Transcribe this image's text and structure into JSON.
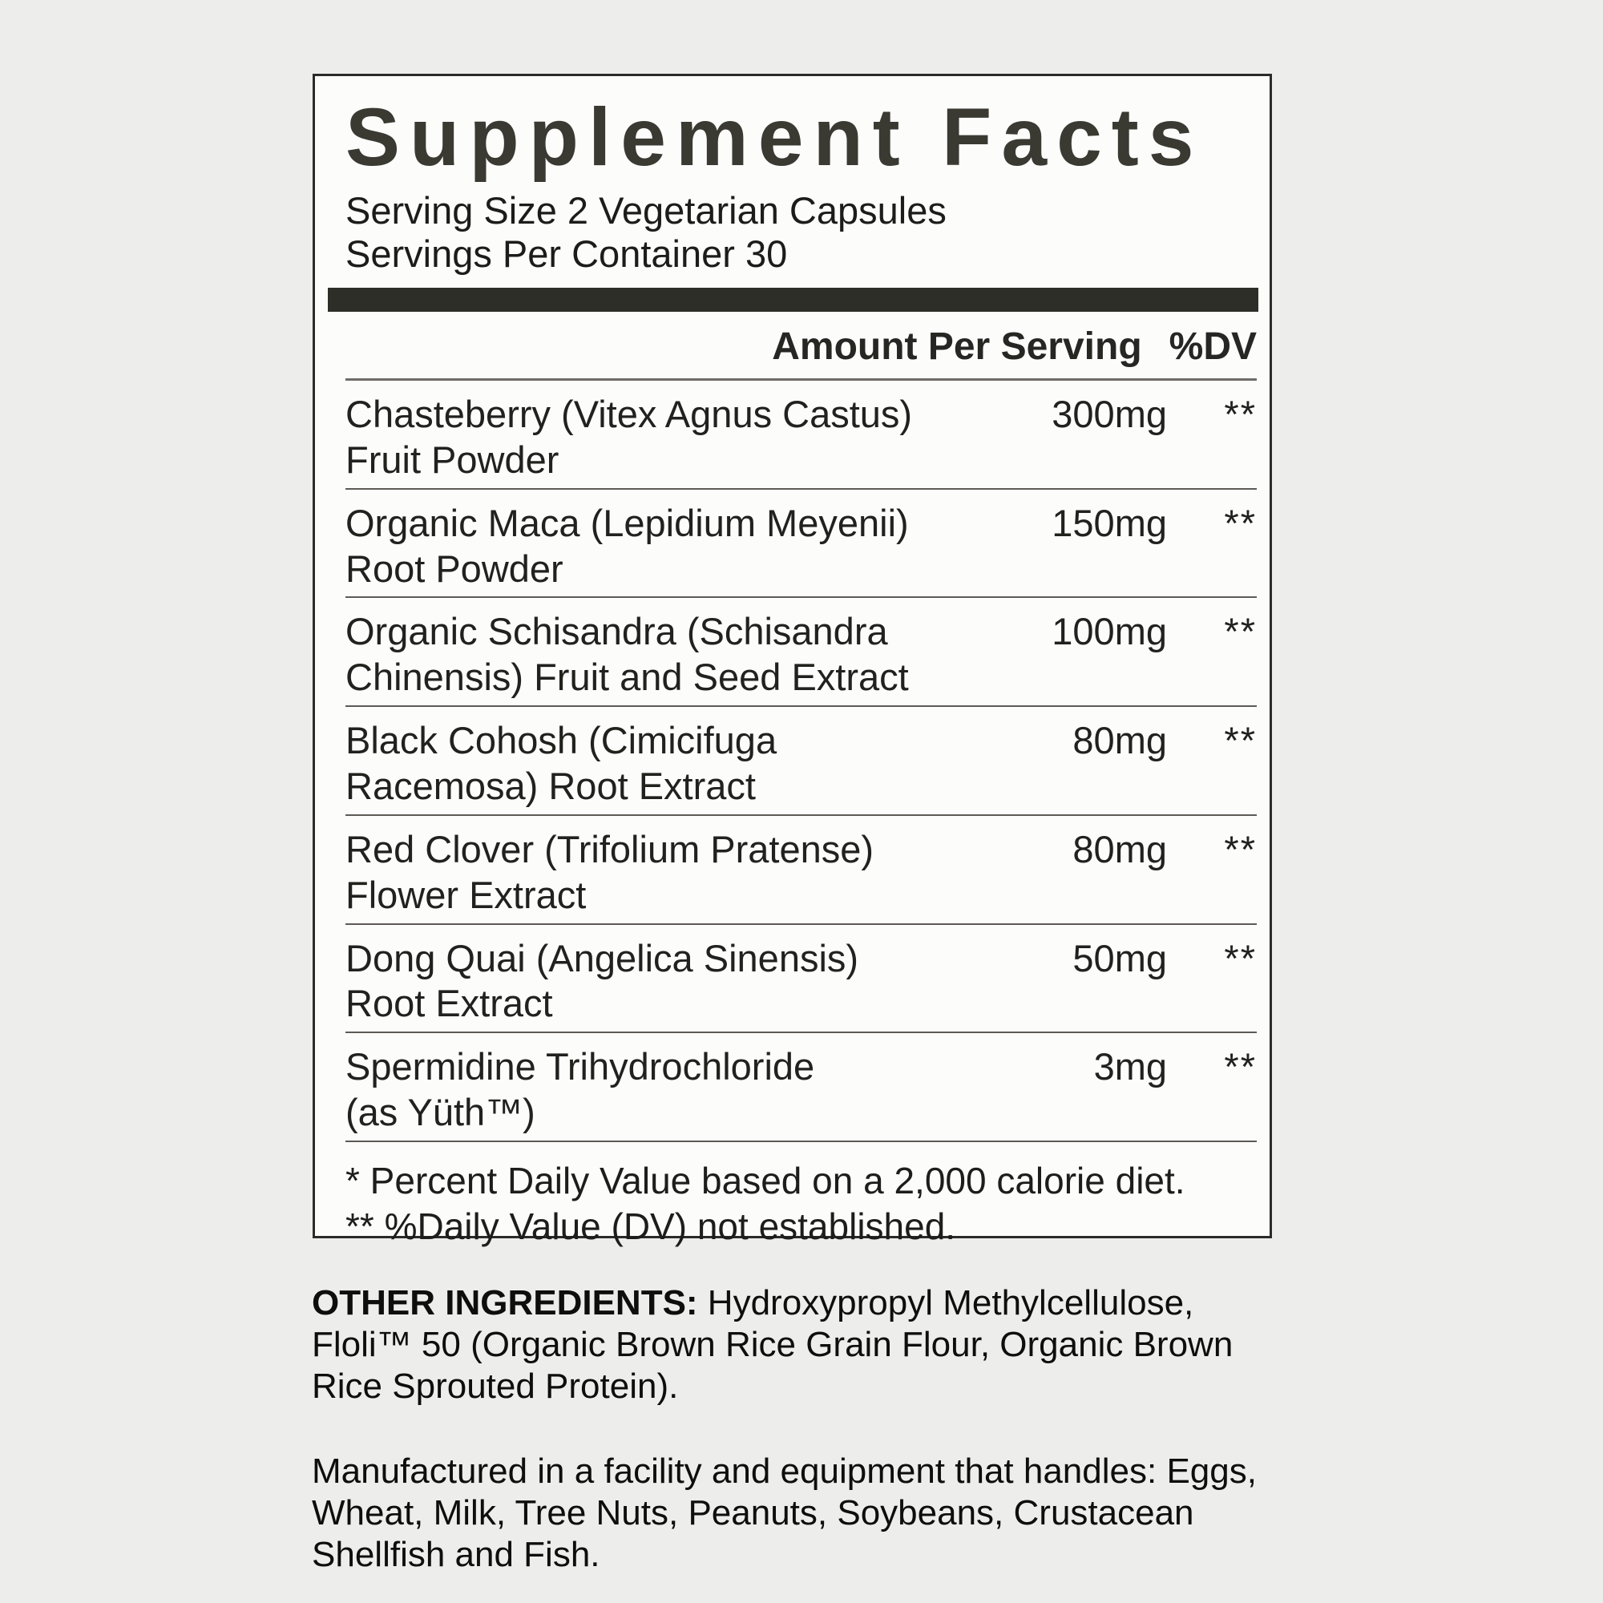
{
  "supplement_facts": {
    "title": "Supplement Facts",
    "serving_size": "Serving Size 2 Vegetarian Capsules",
    "servings_per_container": "Servings Per Container 30",
    "column_header": {
      "amount": "Amount Per Serving",
      "dv": "%DV"
    },
    "rows": [
      {
        "line1": "Chasteberry (Vitex Agnus Castus)",
        "line2": "Fruit Powder",
        "amount": "300mg",
        "dv": "**"
      },
      {
        "line1": "Organic Maca (Lepidium Meyenii)",
        "line2": "Root Powder",
        "amount": "150mg",
        "dv": "**"
      },
      {
        "line1": "Organic Schisandra (Schisandra",
        "line2": "Chinensis) Fruit and Seed Extract",
        "amount": "100mg",
        "dv": "**"
      },
      {
        "line1": "Black Cohosh (Cimicifuga",
        "line2": "Racemosa) Root Extract",
        "amount": "80mg",
        "dv": "**"
      },
      {
        "line1": "Red Clover (Trifolium Pratense)",
        "line2": "Flower Extract",
        "amount": "80mg",
        "dv": "**"
      },
      {
        "line1": "Dong Quai (Angelica Sinensis)",
        "line2": "Root Extract",
        "amount": "50mg",
        "dv": "**"
      },
      {
        "line1": "Spermidine Trihydrochloride",
        "line2": "(as Yüth™)",
        "amount": "3mg",
        "dv": "**"
      }
    ],
    "footnotes": [
      "* Percent Daily Value based on a 2,000 calorie diet.",
      "** %Daily Value (DV) not established."
    ]
  },
  "other_ingredients": {
    "label": "OTHER INGREDIENTS:",
    "lines": [
      " Hydroxypropyl Methylcellulose,",
      "Floli™ 50 (Organic Brown Rice Grain Flour, Organic Brown",
      "Rice Sprouted Protein)."
    ]
  },
  "allergen_notice": {
    "lines": [
      "Manufactured in a facility and equipment that handles: Eggs,",
      "Wheat, Milk, Tree Nuts, Peanuts, Soybeans, Crustacean",
      "Shellfish and Fish."
    ]
  },
  "colors": {
    "page_background": "#ededec",
    "panel_background": "#fcfcfb",
    "ink": "#21211e",
    "title_ink": "#3a3a33",
    "thick_bar": "#2e2e29",
    "divider": "#5d5a55",
    "panel_border": "#2b2b27"
  }
}
